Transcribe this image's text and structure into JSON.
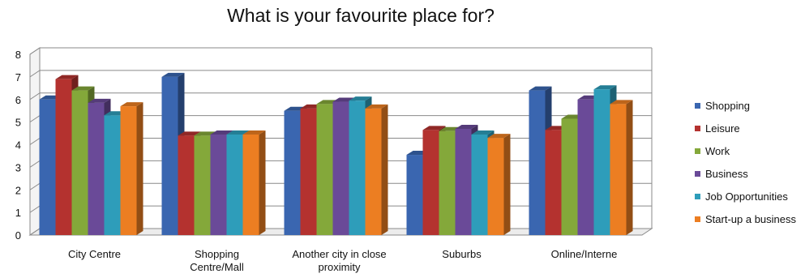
{
  "chart_data": {
    "type": "bar",
    "title": "What is your favourite place for?",
    "xlabel": "",
    "ylabel": "",
    "ylim": [
      0,
      8
    ],
    "yticks": [
      "0",
      "1",
      "2",
      "3",
      "4",
      "5",
      "6",
      "7",
      "8"
    ],
    "grid": true,
    "legend_position": "right",
    "categories": [
      [
        "City Centre"
      ],
      [
        "Shopping",
        "Centre/Mall"
      ],
      [
        "Another city in close",
        "proximity"
      ],
      [
        "Suburbs"
      ],
      [
        "Online/Interne"
      ]
    ],
    "category_names": [
      "City Centre",
      "Shopping Centre/Mall",
      "Another city in close proximity",
      "Suburbs",
      "Online/Interne"
    ],
    "series": [
      {
        "name": "Shopping",
        "color": "#3A66B0",
        "values": [
          6.0,
          7.0,
          5.5,
          3.55,
          6.4
        ]
      },
      {
        "name": "Leisure",
        "color": "#B4322F",
        "values": [
          6.9,
          4.4,
          5.6,
          4.65,
          4.65
        ]
      },
      {
        "name": "Work",
        "color": "#84A83A",
        "values": [
          6.4,
          4.4,
          5.8,
          4.6,
          5.15
        ]
      },
      {
        "name": "Business",
        "color": "#6A4A98",
        "values": [
          5.85,
          4.45,
          5.9,
          4.7,
          6.0
        ]
      },
      {
        "name": "Job Opportunities",
        "color": "#2E9DBA",
        "values": [
          5.3,
          4.45,
          5.95,
          4.45,
          6.45
        ]
      },
      {
        "name": "Start-up a business",
        "color": "#EC7E22",
        "values": [
          5.7,
          4.45,
          5.6,
          4.3,
          5.8
        ]
      }
    ]
  }
}
